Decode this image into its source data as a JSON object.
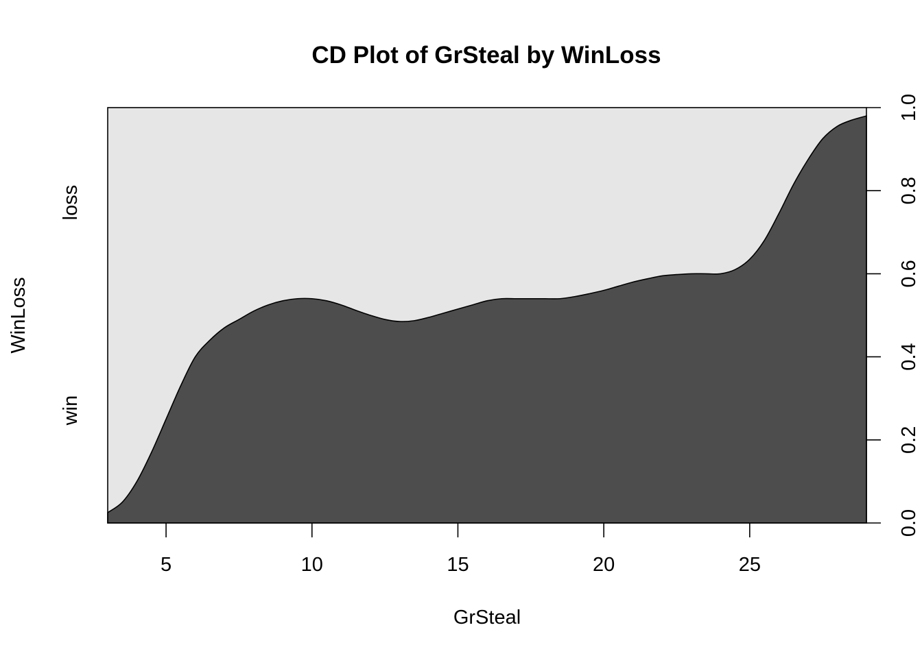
{
  "chart_data": {
    "type": "area",
    "title": "CD Plot of GrSteal by WinLoss",
    "xlabel": "GrSteal",
    "ylabel": "WinLoss",
    "xlim": [
      3,
      29
    ],
    "ylim": [
      0,
      1
    ],
    "x_ticks": [
      5,
      10,
      15,
      20,
      25
    ],
    "x_tick_labels": [
      "5",
      "10",
      "15",
      "20",
      "25"
    ],
    "y_right_ticks": [
      0,
      0.2,
      0.4,
      0.6,
      0.8,
      1.0
    ],
    "y_right_tick_labels": [
      "0.0",
      "0.2",
      "0.4",
      "0.6",
      "0.8",
      "1.0"
    ],
    "categories": [
      "win",
      "loss"
    ],
    "category_colors": {
      "win": "#4d4d4d",
      "loss": "#e6e6e6"
    },
    "series": [
      {
        "name": "win",
        "x": [
          3,
          3.5,
          4,
          4.5,
          5,
          5.5,
          6,
          6.5,
          7,
          7.5,
          8,
          8.5,
          9,
          9.5,
          10,
          10.5,
          11,
          11.5,
          12,
          12.5,
          13,
          13.5,
          14,
          14.5,
          15,
          15.5,
          16,
          16.5,
          17,
          17.5,
          18,
          18.5,
          19,
          19.5,
          20,
          20.5,
          21,
          21.5,
          22,
          22.5,
          23,
          23.5,
          24,
          24.5,
          25,
          25.5,
          26,
          26.5,
          27,
          27.5,
          28,
          28.5,
          29
        ],
        "values": [
          0.025,
          0.05,
          0.1,
          0.17,
          0.25,
          0.33,
          0.4,
          0.44,
          0.47,
          0.49,
          0.51,
          0.525,
          0.535,
          0.54,
          0.54,
          0.535,
          0.525,
          0.512,
          0.5,
          0.49,
          0.485,
          0.487,
          0.495,
          0.505,
          0.515,
          0.525,
          0.535,
          0.54,
          0.54,
          0.54,
          0.54,
          0.54,
          0.545,
          0.552,
          0.56,
          0.57,
          0.58,
          0.588,
          0.595,
          0.598,
          0.6,
          0.6,
          0.6,
          0.61,
          0.635,
          0.68,
          0.745,
          0.815,
          0.875,
          0.925,
          0.955,
          0.97,
          0.98
        ]
      }
    ],
    "grid": false,
    "legend": "none"
  }
}
